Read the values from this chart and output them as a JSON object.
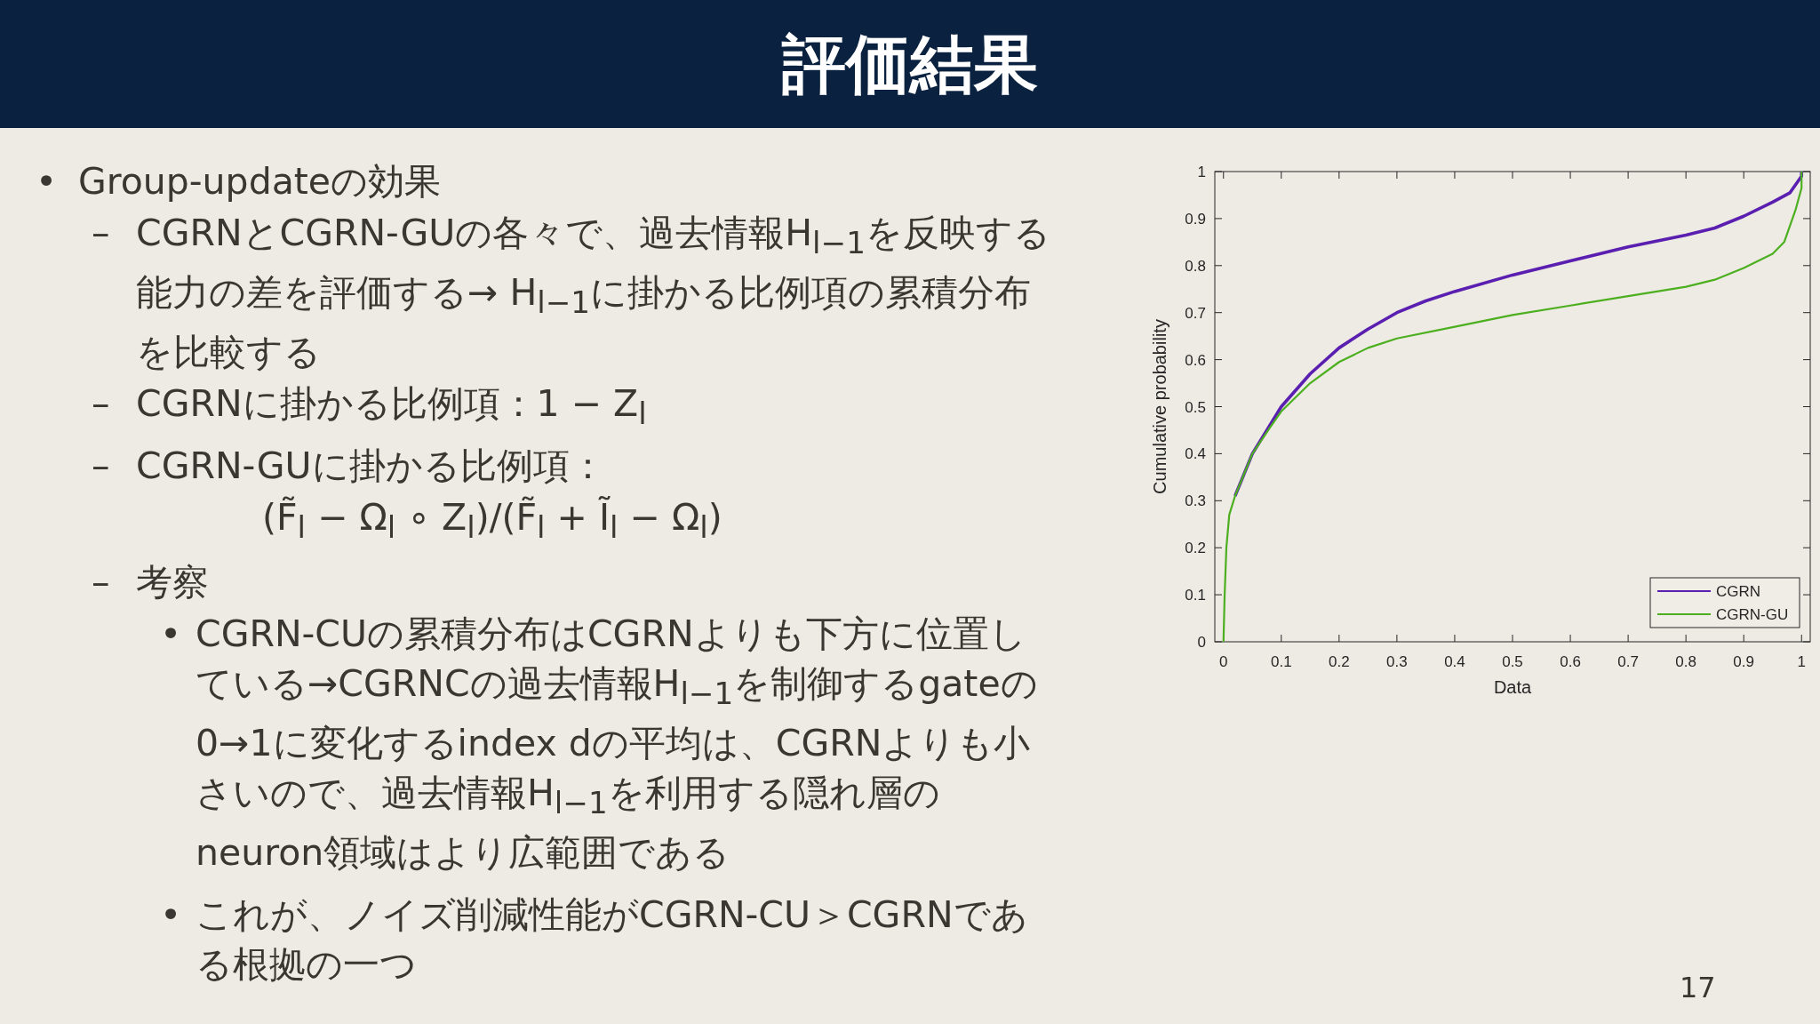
{
  "chart_data": {
    "type": "line",
    "title": "評価結果",
    "xlabel": "Data",
    "ylabel": "Cumulative probability",
    "xlim": [
      -0.015,
      1.015
    ],
    "ylim": [
      0,
      1
    ],
    "xticks": [
      0,
      0.1,
      0.2,
      0.3,
      0.4,
      0.5,
      0.6,
      0.7,
      0.8,
      0.9,
      1
    ],
    "yticks": [
      0,
      0.1,
      0.2,
      0.3,
      0.4,
      0.5,
      0.6,
      0.7,
      0.8,
      0.9,
      1
    ],
    "grid": false,
    "legend": "bottom right",
    "marker": "none",
    "line_style": "solid",
    "series": [
      {
        "name": "CGRN",
        "color": "#5a1fb0",
        "x": [
          0.02,
          0.05,
          0.08,
          0.1,
          0.15,
          0.2,
          0.25,
          0.3,
          0.35,
          0.4,
          0.5,
          0.6,
          0.7,
          0.8,
          0.85,
          0.9,
          0.95,
          0.98,
          1,
          1
        ],
        "values": [
          0.31,
          0.4,
          0.46,
          0.5,
          0.57,
          0.625,
          0.665,
          0.7,
          0.725,
          0.745,
          0.78,
          0.81,
          0.84,
          0.865,
          0.88,
          0.905,
          0.935,
          0.955,
          0.99,
          1
        ]
      },
      {
        "name": "CGRN-GU",
        "color": "#4caf1f",
        "x": [
          0,
          0.002,
          0.005,
          0.01,
          0.02,
          0.05,
          0.08,
          0.1,
          0.15,
          0.2,
          0.25,
          0.3,
          0.4,
          0.5,
          0.6,
          0.7,
          0.8,
          0.85,
          0.9,
          0.95,
          0.97,
          0.99,
          1,
          1
        ],
        "values": [
          0,
          0.1,
          0.2,
          0.27,
          0.31,
          0.4,
          0.455,
          0.49,
          0.55,
          0.595,
          0.625,
          0.645,
          0.67,
          0.695,
          0.715,
          0.735,
          0.755,
          0.77,
          0.795,
          0.825,
          0.85,
          0.92,
          0.965,
          1
        ]
      }
    ],
    "annotations": [
      "• Group-updateの効果",
      "– CGRNとCGRN-GUの各々で、過去情報H$_{l−1}$を反映する能力の差を評価する→ H$_{l−1}$に掛かる比例項の累積分布を比較する",
      "– CGRNに掛かる比例項：1 − Z$_{l}$",
      "– CGRN-GUに掛かる比例項：",
      "(F̃$_{l}$ − Ω$_{l}$ ∘ Z$_{l}$)/(F̃$_{l}$ + Ĩ$_{l}$ − Ω$_{l}$)",
      "– 考察",
      "• CGRN-CUの累積分布はCGRNよりも下方に位置している→CGRNCの過去情報H$_{l−1}$を制御するgateの0→1に変化するindex dの平均は、CGRNよりも小さいので、過去情報H$_{l−1}$を利用する隠れ層のneuron領域はより広範囲である",
      "• これが、ノイズ削減性能がCGRN-CU＞CGRNである根拠の一つ",
      "17"
    ]
  }
}
